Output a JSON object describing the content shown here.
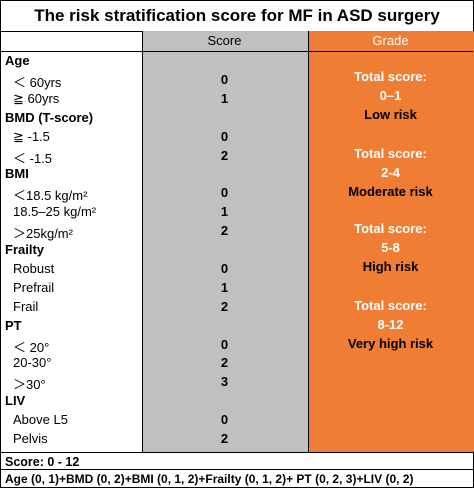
{
  "title": "The risk stratification score for MF in ASD surgery",
  "headers": {
    "score": "Score",
    "grade": "Grade"
  },
  "rows": [
    {
      "label": "Age",
      "type": "cat",
      "score": ""
    },
    {
      "label": "＜ 60yrs",
      "type": "sub",
      "score": "0"
    },
    {
      "label": "≧ 60yrs",
      "type": "sub",
      "score": "1"
    },
    {
      "label": "BMD (T-score)",
      "type": "cat",
      "score": ""
    },
    {
      "label": "≧ -1.5",
      "type": "sub",
      "score": "0"
    },
    {
      "label": "＜ -1.5",
      "type": "sub",
      "score": "2"
    },
    {
      "label": "BMI",
      "type": "cat",
      "score": ""
    },
    {
      "label": "＜18.5 kg/m²",
      "type": "sub",
      "score": "0"
    },
    {
      "label": "18.5–25 kg/m²",
      "type": "sub",
      "score": "1"
    },
    {
      "label": "＞25kg/m²",
      "type": "sub",
      "score": "2"
    },
    {
      "label": "Frailty",
      "type": "cat",
      "score": ""
    },
    {
      "label": "Robust",
      "type": "sub",
      "score": "0"
    },
    {
      "label": "Prefrail",
      "type": "sub",
      "score": "1"
    },
    {
      "label": "Frail",
      "type": "sub",
      "score": "2"
    },
    {
      "label": "PT",
      "type": "cat",
      "score": ""
    },
    {
      "label": "＜ 20°",
      "type": "sub",
      "score": "0"
    },
    {
      "label": "20-30°",
      "type": "sub",
      "score": "2"
    },
    {
      "label": "＞30°",
      "type": "sub",
      "score": "3"
    },
    {
      "label": "LIV",
      "type": "cat",
      "score": ""
    },
    {
      "label": "Above L5",
      "type": "sub",
      "score": "0"
    },
    {
      "label": "Pelvis",
      "type": "sub",
      "score": "2"
    }
  ],
  "grades": [
    {
      "total": "Total score:",
      "range": "0–1",
      "risk": "Low risk"
    },
    {
      "total": "Total score:",
      "range": "2-4",
      "risk": "Moderate risk"
    },
    {
      "total": "Total score:",
      "range": "5-8",
      "risk": "High risk"
    },
    {
      "total": "Total score:",
      "range": "8-12",
      "risk": "Very high risk"
    }
  ],
  "footer": {
    "line1": "Score: 0 - 12",
    "line2": "Age (0, 1)+BMD (0, 2)+BMI (0, 1, 2)+Frailty (0, 1, 2)+ PT (0, 2, 3)+LIV (0, 2)"
  }
}
